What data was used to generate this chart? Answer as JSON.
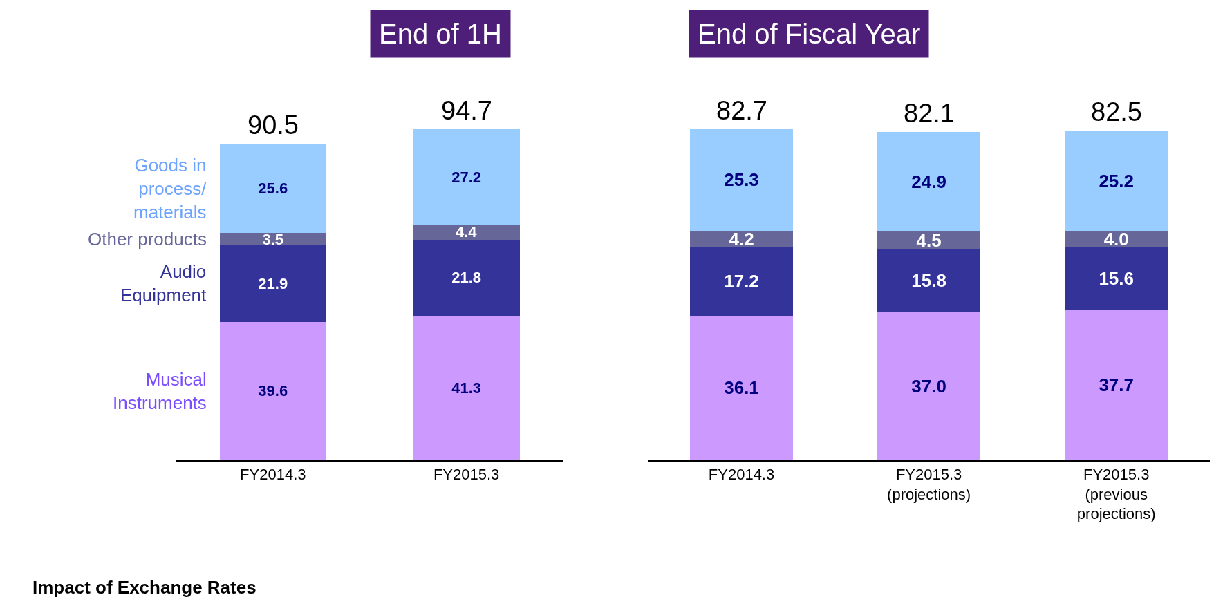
{
  "chart_data": [
    {
      "type": "bar",
      "title": "End of 1H",
      "categories": [
        "FY2014.3",
        "FY2015.3"
      ],
      "stacked": true,
      "series": [
        {
          "name": "Musical\nInstruments",
          "color": "#cc99ff",
          "values": [
            39.6,
            41.3
          ],
          "value_labels": [
            "39.6",
            "41.3"
          ]
        },
        {
          "name": "Audio\nEquipment",
          "color": "#333399",
          "values": [
            21.9,
            21.8
          ],
          "value_labels": [
            "21.9",
            "21.8"
          ]
        },
        {
          "name": "Other products",
          "color": "#666699",
          "values": [
            3.5,
            4.4
          ],
          "value_labels": [
            "3.5",
            "4.4"
          ]
        },
        {
          "name": "Goods in\nprocess/\nmaterials",
          "color": "#99ccff",
          "values": [
            25.6,
            27.2
          ],
          "value_labels": [
            "25.6",
            "27.2"
          ]
        }
      ],
      "totals": [
        "90.5",
        "94.7"
      ],
      "annotations": [
        "Impact of Exchange Rates"
      ]
    },
    {
      "type": "bar",
      "title": "End of Fiscal Year",
      "categories": [
        "FY2014.3",
        "FY2015.3\n(projections)",
        "FY2015.3\n(previous\nprojections)"
      ],
      "stacked": true,
      "series": [
        {
          "color": "#cc99ff",
          "values": [
            36.1,
            37.0,
            37.7
          ],
          "value_labels": [
            "36.1",
            "37.0",
            "37.7"
          ]
        },
        {
          "color": "#333399",
          "values": [
            17.2,
            15.8,
            15.6
          ],
          "value_labels": [
            "17.2",
            "15.8",
            "15.6"
          ]
        },
        {
          "color": "#666699",
          "values": [
            4.2,
            4.5,
            4.0
          ],
          "value_labels": [
            "4.2",
            "4.5",
            "4.0"
          ]
        },
        {
          "color": "#99ccff",
          "values": [
            25.3,
            24.9,
            25.2
          ],
          "value_labels": [
            "25.3",
            "24.9",
            "25.2"
          ]
        }
      ],
      "totals": [
        "82.7",
        "82.1",
        "82.5"
      ]
    }
  ]
}
